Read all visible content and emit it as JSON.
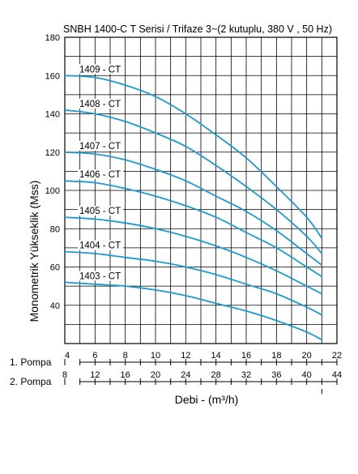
{
  "chart_data": {
    "type": "line",
    "title": "SNBH 1400-C T Serisi / Trifaze 3~(2 kutuplu, 380 V , 50 Hz)",
    "ylabel": "Monometrik Yükseklik (Mss)",
    "xlabel": "Debi - (m³/h)",
    "ylim": [
      20,
      180
    ],
    "yticks": [
      40,
      60,
      80,
      100,
      120,
      140,
      160,
      180
    ],
    "xlim": [
      4,
      22
    ],
    "grid": true,
    "x_axes": [
      {
        "label": "1. Pompa",
        "ticks": [
          "4",
          "6",
          "8",
          "10",
          "12",
          "14",
          "16",
          "18",
          "20",
          "22"
        ],
        "unit_per_major": 2,
        "start": 4
      },
      {
        "label": "2. Pompa",
        "ticks": [
          "8",
          "12",
          "16",
          "20",
          "24",
          "28",
          "32",
          "36",
          "40",
          "44"
        ],
        "unit_per_major": 4,
        "start": 8
      }
    ],
    "color": "#1a9ad6",
    "series": [
      {
        "name": "1409 - CT",
        "x": [
          4,
          6,
          8,
          10,
          12,
          14,
          16,
          18,
          20,
          21
        ],
        "values": [
          160,
          159,
          155,
          149,
          140,
          129,
          117,
          102,
          86,
          75
        ]
      },
      {
        "name": "1408 - CT",
        "x": [
          4,
          6,
          8,
          10,
          12,
          14,
          16,
          18,
          20,
          21
        ],
        "values": [
          142,
          140,
          136,
          130,
          123,
          113,
          102,
          90,
          76,
          67
        ]
      },
      {
        "name": "1407 - CT",
        "x": [
          4,
          6,
          8,
          10,
          12,
          14,
          16,
          18,
          20,
          21
        ],
        "values": [
          120,
          119,
          116,
          111,
          105,
          97,
          89,
          79,
          67,
          61
        ]
      },
      {
        "name": "1406 - CT",
        "x": [
          4,
          6,
          8,
          10,
          12,
          14,
          16,
          18,
          20,
          21
        ],
        "values": [
          105,
          104,
          101,
          97,
          92,
          86,
          78,
          70,
          60,
          55
        ]
      },
      {
        "name": "1405 - CT",
        "x": [
          4,
          6,
          8,
          10,
          12,
          14,
          16,
          18,
          20,
          21
        ],
        "values": [
          86,
          85,
          83,
          80,
          76,
          71,
          65,
          58,
          50,
          46
        ]
      },
      {
        "name": "1404 - CT",
        "x": [
          4,
          6,
          8,
          10,
          12,
          14,
          16,
          18,
          20,
          21
        ],
        "values": [
          68,
          67,
          65,
          63,
          60,
          56,
          51,
          46,
          39,
          35
        ]
      },
      {
        "name": "1403 - CT",
        "x": [
          4,
          6,
          8,
          10,
          12,
          14,
          16,
          18,
          20,
          21
        ],
        "values": [
          52,
          51,
          50,
          48,
          45,
          41,
          37,
          32,
          26,
          22
        ]
      }
    ]
  }
}
